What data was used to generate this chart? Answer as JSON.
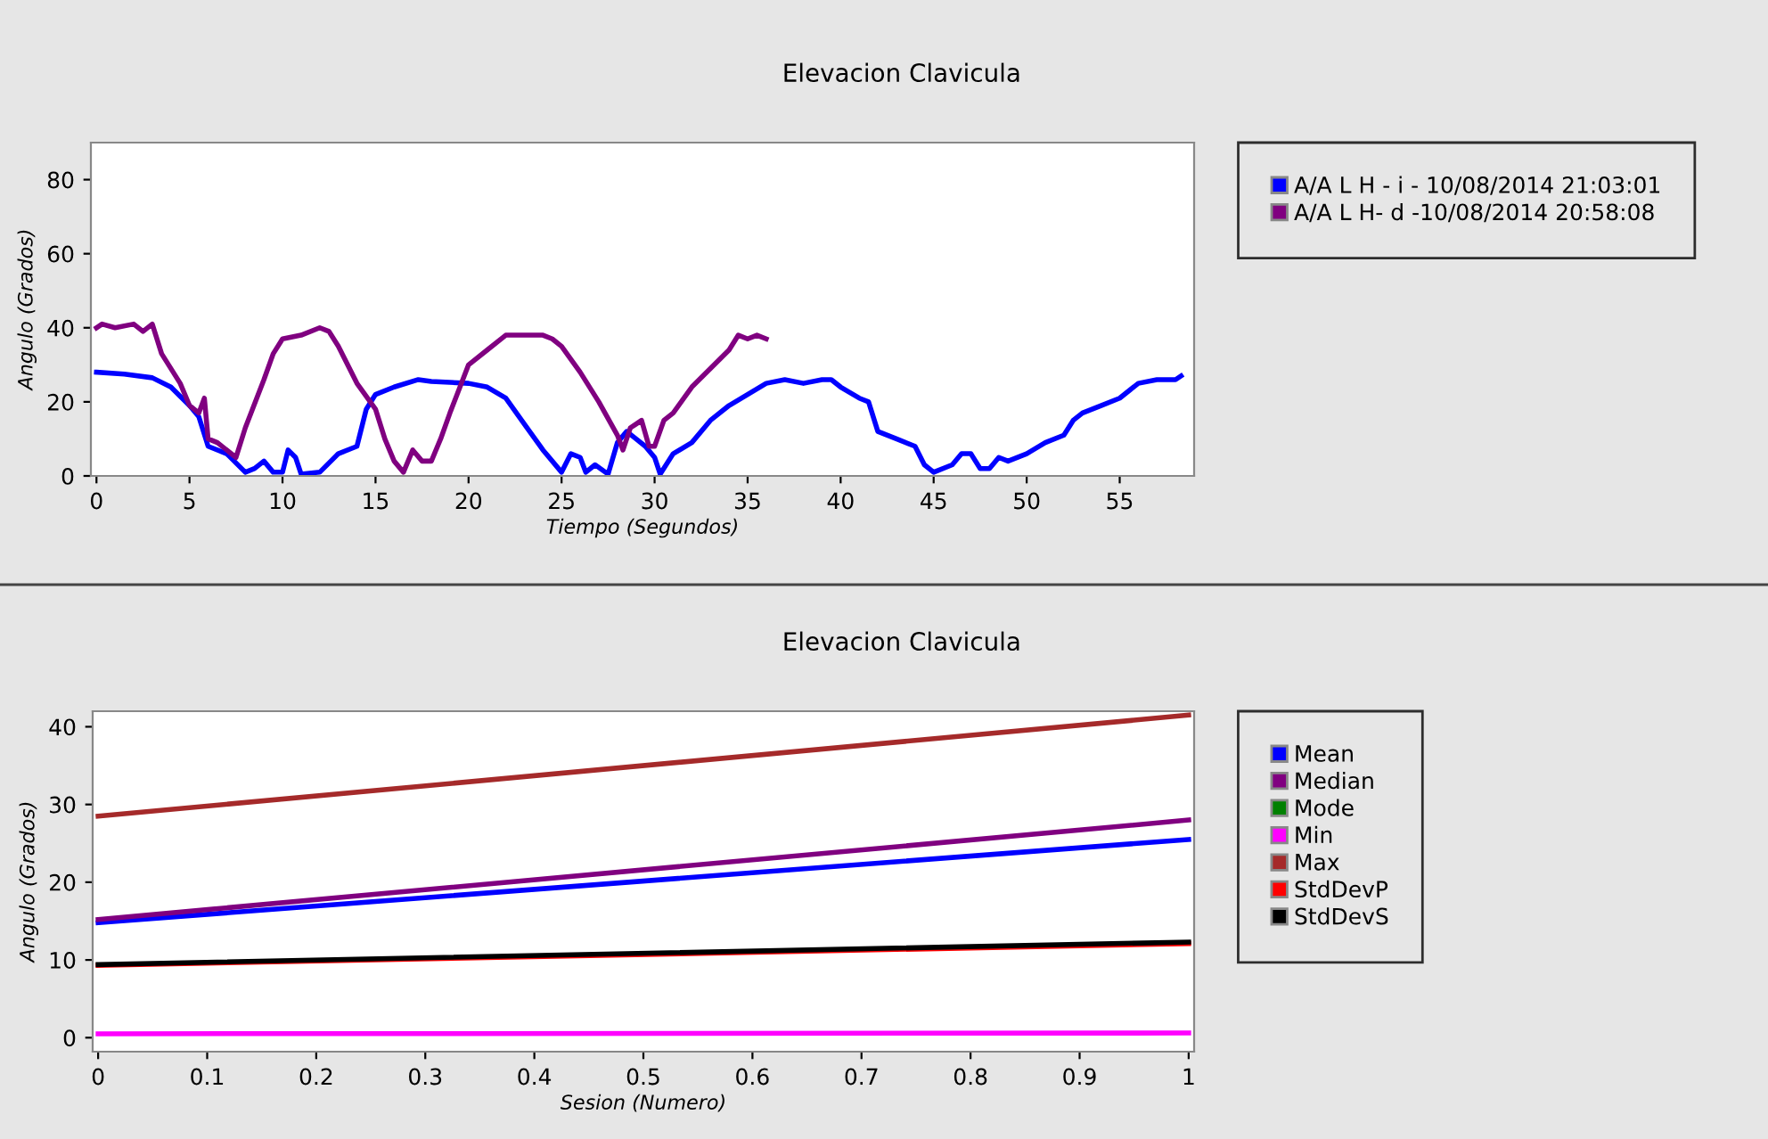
{
  "chart_data": [
    {
      "type": "line",
      "title": "Elevacion Clavicula",
      "xlabel": "Tiempo (Segundos)",
      "ylabel": "Angulo (Grados)",
      "xlim": [
        -0.3,
        59
      ],
      "ylim": [
        0,
        90
      ],
      "xticks": [
        0,
        5,
        10,
        15,
        20,
        25,
        30,
        35,
        40,
        45,
        50,
        55
      ],
      "yticks": [
        0,
        20,
        40,
        60,
        80
      ],
      "grid": false,
      "legend": "right",
      "marker": "none",
      "line_style": "solid",
      "series": [
        {
          "name": "A/A L H - i - 10/08/2014 21:03:01",
          "color": "#0000ff",
          "x": [
            0,
            1.5,
            3,
            4,
            5,
            5.5,
            6,
            7,
            8,
            8.5,
            9,
            9.5,
            10,
            10.3,
            10.7,
            11,
            12,
            13,
            14,
            14.5,
            15,
            16,
            17.3,
            18,
            20,
            21,
            22,
            23,
            24,
            25,
            25.5,
            26,
            26.3,
            26.8,
            27.5,
            28,
            28.5,
            29,
            29.5,
            30,
            30.3,
            31,
            32,
            33,
            34,
            35,
            36,
            37,
            38,
            39,
            39.5,
            40,
            41,
            41.5,
            42,
            43,
            44,
            44.5,
            45,
            46,
            46.5,
            47,
            47.5,
            48,
            48.5,
            49,
            50,
            51,
            52,
            52.5,
            53,
            54,
            55,
            56,
            57,
            58,
            58.3
          ],
          "values": [
            28,
            27.5,
            26.5,
            24,
            19,
            16,
            8,
            6,
            1,
            2,
            4,
            1,
            1,
            7,
            5,
            0.5,
            1,
            6,
            8,
            18,
            22,
            24,
            26,
            25.5,
            25,
            24,
            21,
            14,
            7,
            1,
            6,
            5,
            1,
            3,
            0.5,
            9,
            12,
            10,
            8,
            5,
            0.5,
            6,
            9,
            15,
            19,
            22,
            25,
            26,
            25,
            26,
            26,
            24,
            21,
            20,
            12,
            10,
            8,
            3,
            1,
            3,
            6,
            6,
            2,
            2,
            5,
            4,
            6,
            9,
            11,
            15,
            17,
            19,
            21,
            25,
            26,
            26,
            27
          ]
        },
        {
          "name": "A/A L H- d -10/08/2014 20:58:08",
          "color": "#800080",
          "x": [
            0,
            0.3,
            1,
            2,
            2.5,
            3,
            3.5,
            4.5,
            5,
            5.5,
            5.8,
            6,
            6.5,
            7,
            7.5,
            8,
            9,
            9.5,
            10,
            11,
            12,
            12.5,
            13,
            14,
            15,
            15.5,
            16,
            16.5,
            17,
            17.5,
            18,
            18.5,
            19,
            20,
            21,
            22,
            23,
            24,
            24.5,
            25,
            26,
            27,
            28,
            28.3,
            28.7,
            29,
            29.3,
            29.7,
            30,
            30.5,
            31,
            32,
            33,
            34,
            34.5,
            35,
            35.5,
            36
          ],
          "values": [
            40,
            41,
            40,
            41,
            39,
            41,
            33,
            25,
            19,
            17,
            21,
            10,
            9,
            7,
            5,
            13,
            26,
            33,
            37,
            38,
            40,
            39,
            35,
            25,
            18,
            10,
            4,
            1,
            7,
            4,
            4,
            10,
            17,
            30,
            34,
            38,
            38,
            38,
            37,
            35,
            28,
            20,
            11,
            7,
            13,
            14,
            15,
            8,
            8,
            15,
            17,
            24,
            29,
            34,
            38,
            37,
            38,
            37
          ]
        }
      ]
    },
    {
      "type": "line",
      "title": "Elevacion Clavicula",
      "xlabel": "Sesion (Numero)",
      "ylabel": "Angulo (Grados)",
      "xlim": [
        -0.005,
        1.005
      ],
      "ylim": [
        -1.8,
        42
      ],
      "xticks": [
        0,
        0.1,
        0.2,
        0.3,
        0.4,
        0.5,
        0.6,
        0.7,
        0.8,
        0.9,
        1
      ],
      "yticks": [
        0,
        10,
        20,
        30,
        40
      ],
      "grid": false,
      "legend": "right",
      "marker": "none",
      "line_style": "solid",
      "series": [
        {
          "name": "Mean",
          "color": "#0000ff",
          "x": [
            0,
            1
          ],
          "values": [
            14.8,
            25.5
          ]
        },
        {
          "name": "Median",
          "color": "#800080",
          "x": [
            0,
            1
          ],
          "values": [
            15.2,
            28
          ]
        },
        {
          "name": "Mode",
          "color": "#008000",
          "values": [
            null,
            null
          ]
        },
        {
          "name": "Min",
          "color": "#ff00ff",
          "x": [
            0,
            1
          ],
          "values": [
            0.5,
            0.6
          ]
        },
        {
          "name": "Max",
          "color": "#a52a2a",
          "x": [
            0,
            1
          ],
          "values": [
            28.5,
            41.5
          ]
        },
        {
          "name": "StdDevP",
          "color": "#ff0000",
          "x": [
            0,
            1
          ],
          "values": [
            9.3,
            12.1
          ]
        },
        {
          "name": "StdDevS",
          "color": "#000000",
          "x": [
            0,
            1
          ],
          "values": [
            9.4,
            12.3
          ]
        }
      ]
    }
  ]
}
